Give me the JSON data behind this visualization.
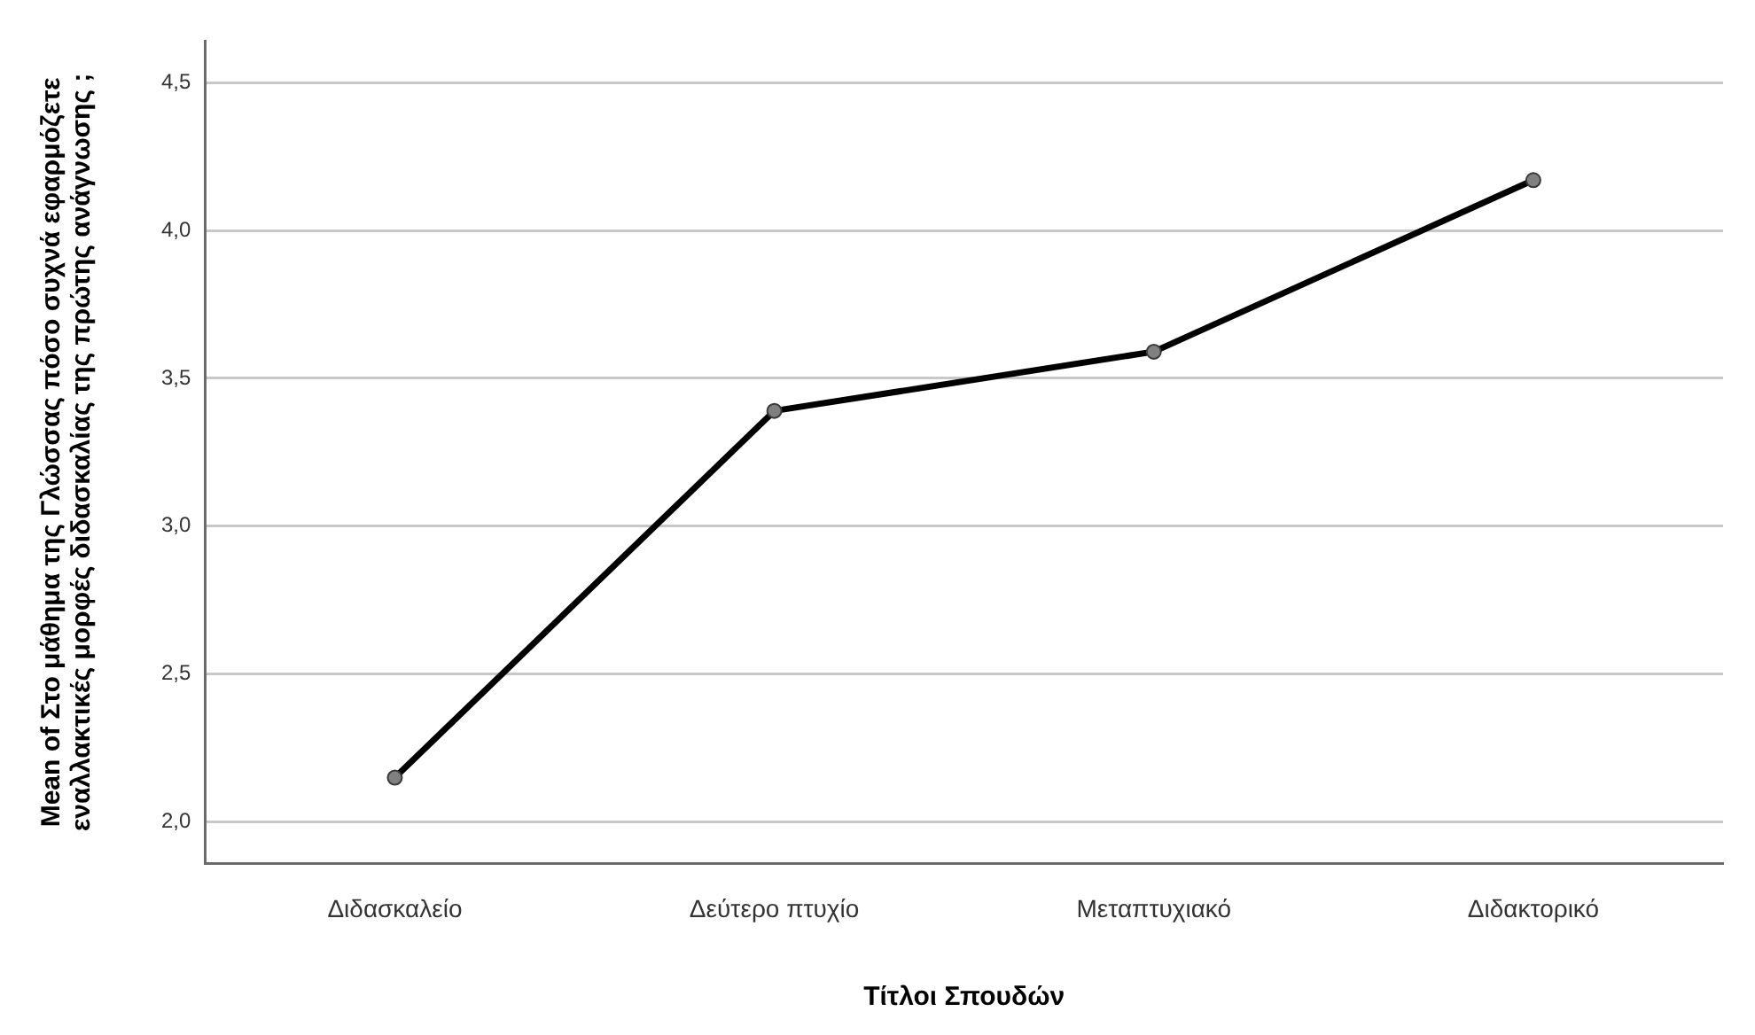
{
  "chart_data": {
    "type": "line",
    "xlabel": "Τίτλοι Σπουδών",
    "ylabel": "Mean of Στο μάθημα της Γλώσσας πόσο συχνά εφαρμόζετε εναλλακτικές μορφές διδασκαλίας της πρώτης ανάγνωσης ;",
    "categories": [
      "Διδασκαλείο",
      "Δεύτερο πτυχίο",
      "Μεταπτυχιακό",
      "Διδακτορικό"
    ],
    "series": [
      {
        "color": "#000000",
        "values": [
          2.15,
          3.39,
          3.59,
          4.17
        ]
      }
    ],
    "ylim": [
      1.86,
      4.64
    ],
    "yticks": [
      {
        "value": 2,
        "label": "2,0"
      },
      {
        "value": 2.5,
        "label": "2,5"
      },
      {
        "value": 3,
        "label": "3,0"
      },
      {
        "value": 3.5,
        "label": "3,5"
      },
      {
        "value": 4,
        "label": "4,0"
      },
      {
        "value": 4.5,
        "label": "4,5"
      }
    ],
    "grid": "y",
    "legend": false,
    "marker": "circle",
    "line_style": "solid"
  }
}
